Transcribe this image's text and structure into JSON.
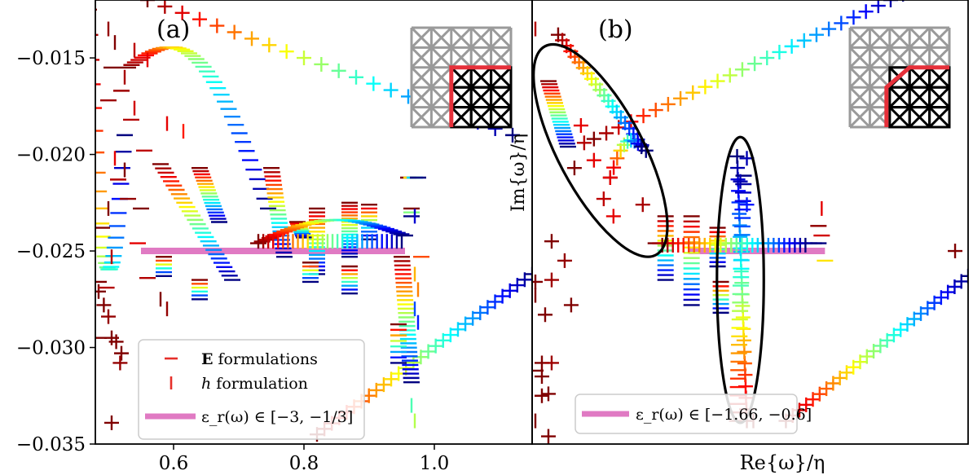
{
  "chart_data": [
    {
      "panel_label": "(a)",
      "type": "scatter",
      "xlabel": "",
      "ylabel": "",
      "xlim": [
        0.48,
        1.15
      ],
      "ylim": [
        -0.035,
        -0.012
      ],
      "x_ticks": [
        0.6,
        0.8,
        1.0
      ],
      "x_tick_labels": [
        "0.6",
        "0.8",
        "1.0"
      ],
      "y_ticks": [
        -0.015,
        -0.02,
        -0.025,
        -0.03,
        -0.035
      ],
      "y_tick_labels": [
        "−0.015",
        "−0.020",
        "−0.025",
        "−0.030",
        "−0.035"
      ],
      "legend_position": "bottom-left",
      "legend": [
        {
          "symbol": "hline",
          "label_bold": "E",
          "label_rest": " formulations"
        },
        {
          "symbol": "vline",
          "label_italic": "h",
          "label_rest": " formulation"
        },
        {
          "symbol": "band",
          "label": "ε_r(ω) ∈ [−3, −1/3]"
        }
      ],
      "band": {
        "x": [
          0.55,
          0.955
        ],
        "y": -0.025,
        "color": "#e07ac3"
      },
      "series": [
        {
          "marker": "cross",
          "color_scale": "jet",
          "x_start": 0.56,
          "x_end": 1.12,
          "y_start": -0.012,
          "y_end": -0.019,
          "curve": 0.0,
          "steps": 22
        },
        {
          "marker": "cross",
          "color_scale": "jet",
          "x_start": 0.82,
          "x_end": 1.15,
          "y_start": -0.0345,
          "y_end": -0.0262,
          "curve": 0.0,
          "steps": 30
        },
        {
          "marker": "dash",
          "color_scale": "jet",
          "x_start": 0.47,
          "x_end": 0.525,
          "y_start": -0.0125,
          "y_end": -0.019,
          "curve": -0.01,
          "steps": 30
        },
        {
          "marker": "dash",
          "color_scale": "jet",
          "x_start": 0.53,
          "x_end": 0.745,
          "y_start": -0.0155,
          "y_end": -0.0228,
          "curve": 0.004,
          "steps": 40
        },
        {
          "marker": "dash",
          "color_scale": "jet",
          "x_start": 0.58,
          "x_end": 0.69,
          "y_start": -0.0205,
          "y_end": -0.0265,
          "curve": 0.0,
          "steps": 28
        },
        {
          "marker": "dash",
          "color_scale": "jet",
          "x_start": 0.64,
          "x_end": 0.67,
          "y_start": -0.0207,
          "y_end": -0.0235,
          "curve": 0.0,
          "steps": 18
        },
        {
          "marker": "dash",
          "color_scale": "jet",
          "x_start": 0.75,
          "x_end": 0.77,
          "y_start": -0.0207,
          "y_end": -0.0253,
          "curve": 0.0,
          "steps": 22
        },
        {
          "marker": "dash",
          "color_scale": "jet",
          "x_start": 0.79,
          "x_end": 0.8,
          "y_start": -0.0235,
          "y_end": -0.0243,
          "curve": 0.0,
          "steps": 10
        },
        {
          "marker": "dash",
          "color_scale": "jet",
          "x_start": 0.82,
          "x_end": 0.82,
          "y_start": -0.0228,
          "y_end": -0.0262,
          "curve": 0.0,
          "steps": 18
        },
        {
          "marker": "dash",
          "color_scale": "jet",
          "x_start": 0.87,
          "x_end": 0.87,
          "y_start": -0.0225,
          "y_end": -0.0253,
          "curve": 0.0,
          "steps": 18
        },
        {
          "marker": "dash",
          "color_scale": "jet",
          "x_start": 0.87,
          "x_end": 0.87,
          "y_start": -0.0258,
          "y_end": -0.0272,
          "curve": 0.0,
          "steps": 8
        },
        {
          "marker": "dash",
          "color_scale": "jet",
          "x_start": 0.9,
          "x_end": 0.9,
          "y_start": -0.0226,
          "y_end": -0.0244,
          "curve": 0.0,
          "steps": 10
        },
        {
          "marker": "dash",
          "color_scale": "jet",
          "x_start": 0.95,
          "x_end": 0.965,
          "y_start": -0.0253,
          "y_end": -0.0318,
          "curve": 0.0,
          "steps": 30
        },
        {
          "marker": "dash",
          "color_scale": "jet",
          "x_start": 0.945,
          "x_end": 0.945,
          "y_start": -0.0288,
          "y_end": -0.0308,
          "curve": 0.0,
          "steps": 8
        },
        {
          "marker": "dash",
          "color_scale": "jet",
          "x_start": 0.81,
          "x_end": 0.81,
          "y_start": -0.0256,
          "y_end": -0.0266,
          "curve": 0.0,
          "steps": 6
        },
        {
          "marker": "dash",
          "color_scale": "jet",
          "x_start": 0.96,
          "x_end": 0.975,
          "y_start": -0.0212,
          "y_end": -0.0212,
          "curve": 0.0,
          "steps": 4
        },
        {
          "marker": "dash",
          "color_scale": "jet",
          "x_start": 0.965,
          "x_end": 0.965,
          "y_start": -0.0228,
          "y_end": -0.0232,
          "curve": 0.0,
          "steps": 3
        },
        {
          "marker": "dash",
          "color_scale": "jet",
          "x_start": 0.585,
          "x_end": 0.585,
          "y_start": -0.0253,
          "y_end": -0.0263,
          "curve": 0.0,
          "steps": 6
        },
        {
          "marker": "dash",
          "color_scale": "jet",
          "x_start": 0.64,
          "x_end": 0.64,
          "y_start": -0.0265,
          "y_end": -0.0275,
          "curve": 0.0,
          "steps": 6
        },
        {
          "marker": "dash",
          "color_scale": "jet",
          "x_start": 0.73,
          "x_end": 0.955,
          "y_start": -0.0246,
          "y_end": -0.0242,
          "curve": 0.001,
          "steps": 40
        },
        {
          "marker": "vline",
          "color_scale": "jet",
          "x_start": 0.73,
          "x_end": 0.95,
          "y_start": -0.0245,
          "y_end": -0.0245,
          "curve": 0.0,
          "steps": 30
        }
      ],
      "scatter": [
        {
          "marker": "cross",
          "x": 0.485,
          "y": -0.0271,
          "t": 0.0
        },
        {
          "marker": "cross",
          "x": 0.493,
          "y": -0.0278,
          "t": 0.0
        },
        {
          "marker": "cross",
          "x": 0.505,
          "y": -0.0295,
          "t": 0.0
        },
        {
          "marker": "cross",
          "x": 0.505,
          "y": -0.0339,
          "t": 0.0
        },
        {
          "marker": "cross",
          "x": 0.512,
          "y": -0.0297,
          "t": 0.0
        },
        {
          "marker": "cross",
          "x": 0.52,
          "y": -0.0303,
          "t": 0.0
        },
        {
          "marker": "cross",
          "x": 0.5,
          "y": -0.0284,
          "t": 0.02
        },
        {
          "marker": "cross",
          "x": 0.518,
          "y": -0.0308,
          "t": 0.02
        },
        {
          "marker": "dash",
          "x": 0.485,
          "y": -0.0266,
          "t": 0.0
        },
        {
          "marker": "dash",
          "x": 0.497,
          "y": -0.0269,
          "t": 0.05
        },
        {
          "marker": "dash",
          "x": 0.49,
          "y": -0.0238,
          "t": 0.0
        },
        {
          "marker": "dash",
          "x": 0.53,
          "y": -0.0223,
          "t": 0.02
        },
        {
          "marker": "dash",
          "x": 0.515,
          "y": -0.0213,
          "t": 0.05
        },
        {
          "marker": "dash",
          "x": 0.55,
          "y": -0.0228,
          "t": 0.0
        },
        {
          "marker": "dash",
          "x": 0.56,
          "y": -0.0264,
          "t": 0.05
        },
        {
          "marker": "dash",
          "x": 0.545,
          "y": -0.0246,
          "t": 0.1
        },
        {
          "marker": "dash",
          "x": 0.505,
          "y": -0.0155,
          "t": 0.0
        },
        {
          "marker": "dash",
          "x": 0.52,
          "y": -0.0167,
          "t": 0.03
        },
        {
          "marker": "dash",
          "x": 0.535,
          "y": -0.0182,
          "t": 0.05
        },
        {
          "marker": "dash",
          "x": 0.5,
          "y": -0.0172,
          "t": 0.03
        },
        {
          "marker": "dash",
          "x": 0.555,
          "y": -0.0198,
          "t": 0.06
        },
        {
          "marker": "dash",
          "x": 0.485,
          "y": -0.0295,
          "t": 0.0
        },
        {
          "marker": "dash",
          "x": 0.98,
          "y": -0.0253,
          "t": 0.2
        },
        {
          "marker": "vline",
          "x": 0.5,
          "y": -0.0135,
          "t": 0.02
        },
        {
          "marker": "vline",
          "x": 0.51,
          "y": -0.0142,
          "t": 0.0
        },
        {
          "marker": "vline",
          "x": 0.54,
          "y": -0.0146,
          "t": 0.06
        },
        {
          "marker": "vline",
          "x": 0.56,
          "y": -0.0151,
          "t": 0.1
        },
        {
          "marker": "vline",
          "x": 0.525,
          "y": -0.016,
          "t": 0.04
        },
        {
          "marker": "vline",
          "x": 0.54,
          "y": -0.0176,
          "t": 0.08
        },
        {
          "marker": "vline",
          "x": 0.59,
          "y": -0.0184,
          "t": 0.1
        },
        {
          "marker": "vline",
          "x": 0.615,
          "y": -0.0188,
          "t": 0.15
        },
        {
          "marker": "vline",
          "x": 0.5,
          "y": -0.0228,
          "t": 0.0
        },
        {
          "marker": "vline",
          "x": 0.505,
          "y": -0.0253,
          "t": 0.05
        },
        {
          "marker": "vline",
          "x": 0.525,
          "y": -0.0208,
          "t": 0.0
        },
        {
          "marker": "vline",
          "x": 0.51,
          "y": -0.0202,
          "t": 0.1
        },
        {
          "marker": "vline",
          "x": 0.58,
          "y": -0.0275,
          "t": 0.0
        },
        {
          "marker": "vline",
          "x": 0.59,
          "y": -0.028,
          "t": 0.02
        },
        {
          "marker": "vline",
          "x": 0.97,
          "y": -0.0262,
          "t": 0.3
        },
        {
          "marker": "vline",
          "x": 0.975,
          "y": -0.027,
          "t": 0.25
        },
        {
          "marker": "vline",
          "x": 0.97,
          "y": -0.028,
          "t": 0.8
        },
        {
          "marker": "vline",
          "x": 0.97,
          "y": -0.0232,
          "t": 0.92
        },
        {
          "marker": "vline",
          "x": 0.975,
          "y": -0.0287,
          "t": 0.85
        },
        {
          "marker": "vline",
          "x": 0.965,
          "y": -0.033,
          "t": 0.55
        },
        {
          "marker": "vline",
          "x": 0.97,
          "y": -0.0338,
          "t": 0.45
        }
      ],
      "inset": {
        "style": "structured"
      }
    },
    {
      "panel_label": "(b)",
      "type": "scatter",
      "xlabel": "Re{ω}/η",
      "ylabel": "Im{ω}/η",
      "xlim": [
        0.48,
        1.15
      ],
      "ylim": [
        -0.035,
        -0.012
      ],
      "legend_position": "bottom-center",
      "legend": [
        {
          "symbol": "band",
          "label": "ε_r(ω) ∈ [−1.66, −0.6]"
        }
      ],
      "band": {
        "x": [
          0.72,
          0.93
        ],
        "y": -0.025,
        "color": "#e07ac3"
      },
      "ellipses": [
        {
          "cx": 0.585,
          "cy": -0.0198,
          "rx": 0.1,
          "ry": 0.032,
          "rotation": 62
        },
        {
          "cx": 0.8,
          "cy": -0.0265,
          "rx": 0.036,
          "ry": 0.0074,
          "rotation": 0
        }
      ],
      "series": [
        {
          "marker": "cross",
          "color_scale": "jet",
          "x_start": 0.575,
          "x_end": 1.05,
          "y_start": -0.0192,
          "y_end": -0.0117,
          "curve": 0.0,
          "steps": 26
        },
        {
          "marker": "cross",
          "color_scale": "jet",
          "x_start": 0.87,
          "x_end": 1.15,
          "y_start": -0.0338,
          "y_end": -0.0263,
          "curve": 0.0,
          "steps": 28
        },
        {
          "marker": "cross",
          "color_scale": "jet",
          "x_start": 0.52,
          "x_end": 0.655,
          "y_start": -0.0138,
          "y_end": -0.0198,
          "curve": 0.0,
          "steps": 22
        },
        {
          "marker": "cross",
          "color_scale": "jet",
          "x_start": 0.6,
          "x_end": 0.648,
          "y_start": -0.0212,
          "y_end": -0.0196,
          "curve": 0.001,
          "steps": 10
        },
        {
          "marker": "cross",
          "color_scale": "jet",
          "x_start": 0.81,
          "x_end": 0.795,
          "y_start": -0.0338,
          "y_end": -0.0201,
          "curve": 0.0,
          "steps": 24
        },
        {
          "marker": "dash",
          "color_scale": "jet",
          "x_start": 0.505,
          "x_end": 0.535,
          "y_start": -0.0162,
          "y_end": -0.0196,
          "curve": 0.0,
          "steps": 22
        },
        {
          "marker": "dash",
          "color_scale": "jet",
          "x_start": 0.795,
          "x_end": 0.805,
          "y_start": -0.0338,
          "y_end": -0.0211,
          "curve": 0.0,
          "steps": 30
        },
        {
          "marker": "dash",
          "color_scale": "jet",
          "x_start": 0.685,
          "x_end": 0.685,
          "y_start": -0.0232,
          "y_end": -0.0265,
          "curve": 0.0,
          "steps": 14
        },
        {
          "marker": "dash",
          "color_scale": "jet",
          "x_start": 0.725,
          "x_end": 0.725,
          "y_start": -0.0232,
          "y_end": -0.0278,
          "curve": 0.0,
          "steps": 18
        },
        {
          "marker": "dash",
          "color_scale": "jet",
          "x_start": 0.765,
          "x_end": 0.765,
          "y_start": -0.0238,
          "y_end": -0.0258,
          "curve": 0.0,
          "steps": 10
        },
        {
          "marker": "dash",
          "color_scale": "jet",
          "x_start": 0.77,
          "x_end": 0.77,
          "y_start": -0.0266,
          "y_end": -0.0282,
          "curve": 0.0,
          "steps": 8
        },
        {
          "marker": "dash",
          "color_scale": "jet",
          "x_start": 0.67,
          "x_end": 0.92,
          "y_start": -0.0246,
          "y_end": -0.0246,
          "curve": 0.0,
          "steps": 36
        },
        {
          "marker": "vline",
          "color_scale": "jet",
          "x_start": 0.68,
          "x_end": 0.9,
          "y_start": -0.0247,
          "y_end": -0.0247,
          "curve": 0.0,
          "steps": 28
        }
      ],
      "scatter": [
        {
          "marker": "cross",
          "x": 0.555,
          "y": -0.0185,
          "t": 0.1
        },
        {
          "marker": "cross",
          "x": 0.56,
          "y": -0.0194,
          "t": 0.05
        },
        {
          "marker": "cross",
          "x": 0.575,
          "y": -0.0203,
          "t": 0.1
        },
        {
          "marker": "cross",
          "x": 0.545,
          "y": -0.0207,
          "t": 0.0
        },
        {
          "marker": "cross",
          "x": 0.6,
          "y": -0.0212,
          "t": 0.1
        },
        {
          "marker": "cross",
          "x": 0.59,
          "y": -0.0223,
          "t": 0.06
        },
        {
          "marker": "cross",
          "x": 0.605,
          "y": -0.0232,
          "t": 0.1
        },
        {
          "marker": "cross",
          "x": 0.65,
          "y": -0.0226,
          "t": 0.04
        },
        {
          "marker": "cross",
          "x": 0.51,
          "y": -0.0245,
          "t": 0.0
        },
        {
          "marker": "cross",
          "x": 0.51,
          "y": -0.0265,
          "t": 0.03
        },
        {
          "marker": "cross",
          "x": 0.53,
          "y": -0.0255,
          "t": 0.02
        },
        {
          "marker": "cross",
          "x": 0.54,
          "y": -0.0278,
          "t": 0.0
        },
        {
          "marker": "cross",
          "x": 0.5,
          "y": -0.0283,
          "t": 0.0
        },
        {
          "marker": "cross",
          "x": 0.495,
          "y": -0.0315,
          "t": 0.0
        },
        {
          "marker": "cross",
          "x": 0.495,
          "y": -0.0325,
          "t": 0.0
        },
        {
          "marker": "cross",
          "x": 0.505,
          "y": -0.0324,
          "t": 0.0
        },
        {
          "marker": "cross",
          "x": 0.505,
          "y": -0.0346,
          "t": 0.0
        },
        {
          "marker": "cross",
          "x": 0.495,
          "y": -0.0308,
          "t": 0.0
        },
        {
          "marker": "cross",
          "x": 0.51,
          "y": -0.0308,
          "t": 0.03
        },
        {
          "marker": "cross",
          "x": 0.485,
          "y": -0.0266,
          "t": 0.0
        },
        {
          "marker": "cross",
          "x": 1.13,
          "y": -0.025,
          "t": 0.0
        },
        {
          "marker": "cross",
          "x": 0.81,
          "y": -0.0202,
          "t": 0.95
        },
        {
          "marker": "cross",
          "x": 0.8,
          "y": -0.0214,
          "t": 0.95
        },
        {
          "marker": "cross",
          "x": 0.81,
          "y": -0.0226,
          "t": 0.85
        },
        {
          "marker": "dash",
          "x": 0.485,
          "y": -0.0312,
          "t": 0.0
        },
        {
          "marker": "dash",
          "x": 0.92,
          "y": -0.0237,
          "t": 0.02
        },
        {
          "marker": "dash",
          "x": 0.925,
          "y": -0.0242,
          "t": 0.08
        },
        {
          "marker": "dash",
          "x": 0.93,
          "y": -0.0255,
          "t": 0.35
        },
        {
          "marker": "vline",
          "x": 0.485,
          "y": -0.0135,
          "t": 0.05
        },
        {
          "marker": "vline",
          "x": 0.485,
          "y": -0.0273,
          "t": 0.0
        },
        {
          "marker": "vline",
          "x": 0.485,
          "y": -0.0338,
          "t": 0.0
        },
        {
          "marker": "vline",
          "x": 0.82,
          "y": -0.0338,
          "t": 0.0
        },
        {
          "marker": "vline",
          "x": 0.925,
          "y": -0.0228,
          "t": 0.1
        }
      ],
      "inset": {
        "style": "unstructured"
      }
    }
  ]
}
